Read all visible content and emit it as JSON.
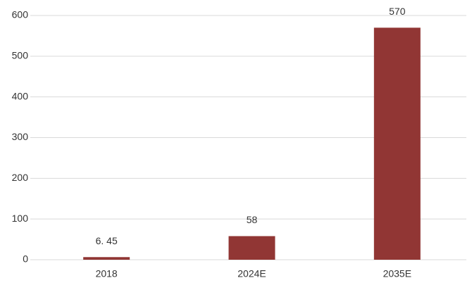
{
  "chart_data": {
    "type": "bar",
    "categories": [
      "2018",
      "2024E",
      "2035E"
    ],
    "values": [
      6.45,
      58,
      570
    ],
    "value_labels": [
      "6. 45",
      "58",
      "570"
    ],
    "color": "#913634",
    "ylim": [
      0,
      600
    ],
    "yticks": [
      0,
      100,
      200,
      300,
      400,
      500,
      600
    ],
    "grid": true
  }
}
